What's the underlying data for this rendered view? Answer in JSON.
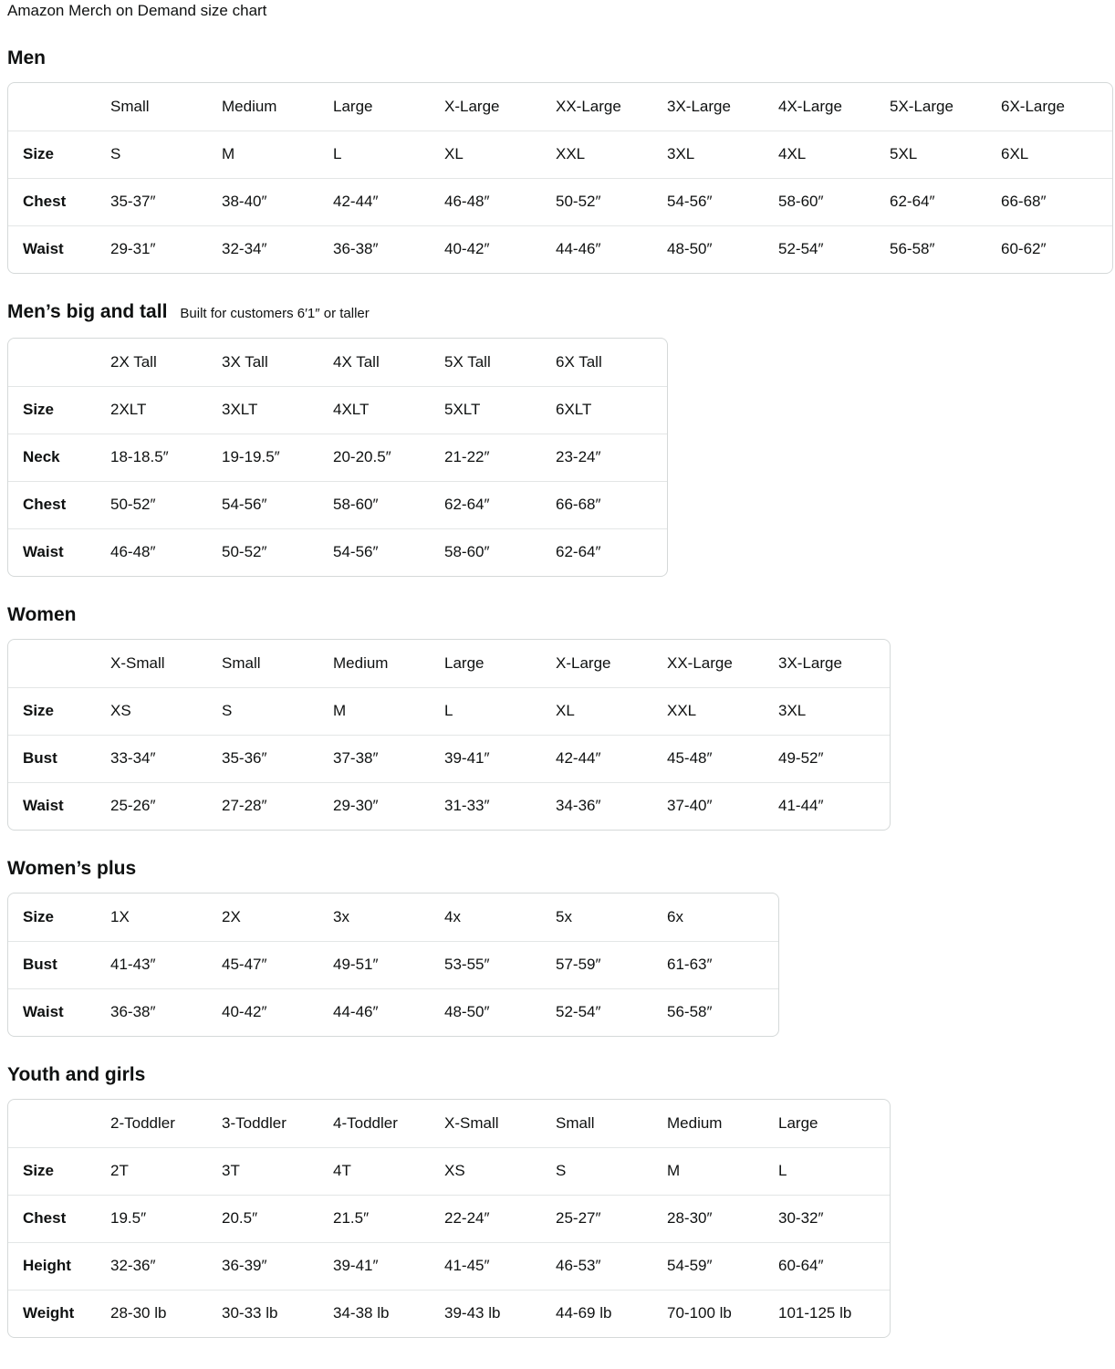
{
  "page_title": "Amazon Merch on Demand size chart",
  "sections": [
    {
      "id": "men",
      "heading": "Men",
      "subtitle": "",
      "columns": [
        "Small",
        "Medium",
        "Large",
        "X-Large",
        "XX-Large",
        "3X-Large",
        "4X-Large",
        "5X-Large",
        "6X-Large"
      ],
      "rows": [
        {
          "label": "Size",
          "values": [
            "S",
            "M",
            "L",
            "XL",
            "XXL",
            "3XL",
            "4XL",
            "5XL",
            "6XL"
          ]
        },
        {
          "label": "Chest",
          "values": [
            "35-37″",
            "38-40″",
            "42-44″",
            "46-48″",
            "50-52″",
            "54-56″",
            "58-60″",
            "62-64″",
            "66-68″"
          ]
        },
        {
          "label": "Waist",
          "values": [
            "29-31″",
            "32-34″",
            "36-38″",
            "40-42″",
            "44-46″",
            "48-50″",
            "52-54″",
            "56-58″",
            "60-62″"
          ]
        }
      ]
    },
    {
      "id": "mens-big-and-tall",
      "heading": "Men’s big and tall",
      "subtitle": "Built for customers 6′1″ or taller",
      "columns": [
        "2X Tall",
        "3X Tall",
        "4X Tall",
        "5X Tall",
        "6X Tall"
      ],
      "rows": [
        {
          "label": "Size",
          "values": [
            "2XLT",
            "3XLT",
            "4XLT",
            "5XLT",
            "6XLT"
          ]
        },
        {
          "label": "Neck",
          "values": [
            "18-18.5″",
            "19-19.5″",
            "20-20.5″",
            "21-22″",
            "23-24″"
          ]
        },
        {
          "label": "Chest",
          "values": [
            "50-52″",
            "54-56″",
            "58-60″",
            "62-64″",
            "66-68″"
          ]
        },
        {
          "label": "Waist",
          "values": [
            "46-48″",
            "50-52″",
            "54-56″",
            "58-60″",
            "62-64″"
          ]
        }
      ]
    },
    {
      "id": "women",
      "heading": "Women",
      "subtitle": "",
      "columns": [
        "X-Small",
        "Small",
        "Medium",
        "Large",
        "X-Large",
        "XX-Large",
        "3X-Large"
      ],
      "rows": [
        {
          "label": "Size",
          "values": [
            "XS",
            "S",
            "M",
            "L",
            "XL",
            "XXL",
            "3XL"
          ]
        },
        {
          "label": "Bust",
          "values": [
            "33-34″",
            "35-36″",
            "37-38″",
            "39-41″",
            "42-44″",
            "45-48″",
            "49-52″"
          ]
        },
        {
          "label": "Waist",
          "values": [
            "25-26″",
            "27-28″",
            "29-30″",
            "31-33″",
            "34-36″",
            "37-40″",
            "41-44″"
          ]
        }
      ]
    },
    {
      "id": "womens-plus",
      "heading": "Women’s plus",
      "subtitle": "",
      "columns": null,
      "rows": [
        {
          "label": "Size",
          "values": [
            "1X",
            "2X",
            "3x",
            "4x",
            "5x",
            "6x"
          ]
        },
        {
          "label": "Bust",
          "values": [
            "41-43″",
            "45-47″",
            "49-51″",
            "53-55″",
            "57-59″",
            "61-63″"
          ]
        },
        {
          "label": "Waist",
          "values": [
            "36-38″",
            "40-42″",
            "44-46″",
            "48-50″",
            "52-54″",
            "56-58″"
          ]
        }
      ]
    },
    {
      "id": "youth-and-girls",
      "heading": "Youth and girls",
      "subtitle": "",
      "columns": [
        "2-Toddler",
        "3-Toddler",
        "4-Toddler",
        "X-Small",
        "Small",
        "Medium",
        "Large"
      ],
      "rows": [
        {
          "label": "Size",
          "values": [
            "2T",
            "3T",
            "4T",
            "XS",
            "S",
            "M",
            "L"
          ]
        },
        {
          "label": "Chest",
          "values": [
            "19.5″",
            "20.5″",
            "21.5″",
            "22-24″",
            "25-27″",
            "28-30″",
            "30-32″"
          ]
        },
        {
          "label": "Height",
          "values": [
            "32-36″",
            "36-39″",
            "39-41″",
            "41-45″",
            "46-53″",
            "54-59″",
            "60-64″"
          ]
        },
        {
          "label": "Weight",
          "values": [
            "28-30 lb",
            "30-33 lb",
            "34-38 lb",
            "39-43 lb",
            "44-69 lb",
            "70-100 lb",
            "101-125 lb"
          ]
        }
      ]
    }
  ],
  "layout_colors": {
    "text": "#0F1111",
    "card_border": "#D5D9D9",
    "row_divider": "#E3E6E6",
    "background": "#FFFFFF"
  }
}
